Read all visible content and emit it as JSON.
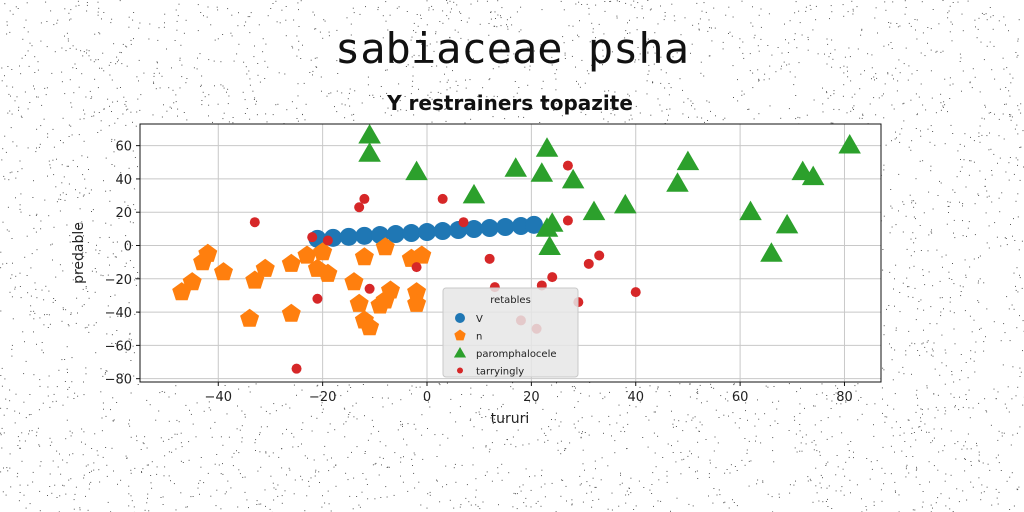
{
  "page": {
    "suptitle": "sabiaceae psha"
  },
  "chart_data": {
    "type": "scatter",
    "title": "Y restrainers topazite",
    "xlabel": "tururi",
    "ylabel": "predable",
    "xlim": [
      -55,
      87
    ],
    "ylim": [
      -82,
      73
    ],
    "xticks": [
      -40,
      -20,
      0,
      20,
      40,
      60,
      80
    ],
    "yticks": [
      -80,
      -60,
      -40,
      -20,
      0,
      20,
      40,
      60
    ],
    "grid": true,
    "legend": {
      "title": "retables",
      "placement": "lower-center"
    },
    "colors": {
      "V": "#1f77b4",
      "n": "#ff7f0e",
      "paromphalocele": "#2ca02c",
      "tarryingly": "#d62728"
    },
    "series": [
      {
        "name": "V",
        "marker": "circle",
        "x": [
          -21,
          -18,
          -15,
          -12,
          -9,
          -6,
          -3,
          0,
          3,
          6,
          9,
          12,
          15,
          18,
          20.5
        ],
        "y": [
          4,
          4.6,
          5.2,
          5.8,
          6.3,
          6.9,
          7.5,
          8.1,
          8.7,
          9.3,
          9.9,
          10.5,
          11.1,
          11.7,
          12.4
        ]
      },
      {
        "name": "n",
        "marker": "pentagon",
        "x": [
          -47,
          -45,
          -43,
          -42,
          -39,
          -34,
          -33,
          -31,
          -26,
          -26,
          -23,
          -21,
          -20,
          -19,
          -14,
          -13,
          -12,
          -12,
          -11,
          -9,
          -8,
          -8,
          -7,
          -3,
          -2,
          -2,
          -1
        ],
        "y": [
          -28,
          -22,
          -10,
          -5,
          -16,
          -44,
          -21,
          -14,
          -41,
          -11,
          -6,
          -14,
          -4,
          -17,
          -22,
          -35,
          -45,
          -7,
          -49,
          -36,
          -33,
          -1,
          -27,
          -8,
          -28,
          -35,
          -6
        ]
      },
      {
        "name": "paromphalocele",
        "marker": "triangle",
        "x": [
          -11,
          -11,
          -2,
          9,
          17,
          22,
          23,
          23,
          23.5,
          24,
          28,
          32,
          38,
          48,
          50,
          62,
          66,
          69,
          72,
          74,
          81
        ],
        "y": [
          67,
          56,
          45,
          31,
          47,
          44,
          59,
          11,
          0,
          14,
          40,
          21,
          25,
          38,
          51,
          21,
          -4,
          13,
          45,
          42,
          61
        ]
      },
      {
        "name": "tarryingly",
        "marker": "small-circle",
        "x": [
          -33,
          -25,
          -22,
          -21,
          -19,
          -13,
          -12,
          -11,
          -2,
          3,
          7,
          12,
          13,
          18,
          21,
          22,
          24,
          27,
          27,
          29,
          31,
          33,
          40
        ],
        "y": [
          14,
          -74,
          5,
          -32,
          3,
          23,
          28,
          -26,
          -13,
          28,
          14,
          -8,
          -25,
          -45,
          -50,
          -24,
          -19,
          48,
          15,
          -34,
          -11,
          -6,
          -28
        ]
      }
    ]
  }
}
